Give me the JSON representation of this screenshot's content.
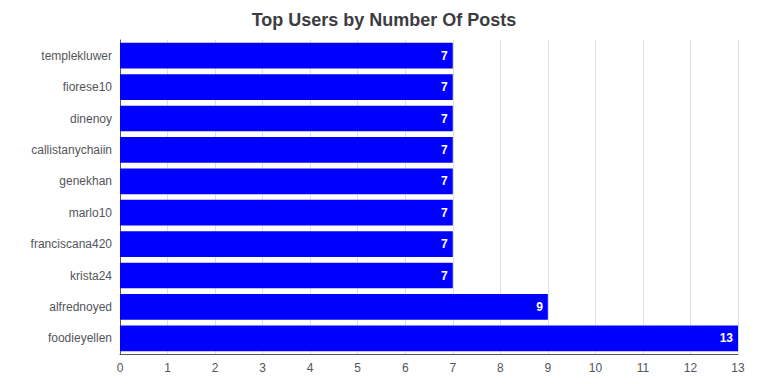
{
  "chart_data": {
    "type": "bar",
    "orientation": "horizontal",
    "title": "Top Users by Number Of Posts",
    "categories": [
      "templekluwer",
      "fiorese10",
      "dinenoy",
      "callistanychaiin",
      "genekhan",
      "marlo10",
      "franciscana420",
      "krista24",
      "alfrednoyed",
      "foodieyellen"
    ],
    "values": [
      7,
      7,
      7,
      7,
      7,
      7,
      7,
      7,
      9,
      13
    ],
    "color": "#0000ff",
    "xlim": [
      0,
      13
    ],
    "xticks": [
      0,
      1,
      2,
      3,
      4,
      5,
      6,
      7,
      8,
      9,
      10,
      11,
      12,
      13
    ],
    "grid": true,
    "data_labels": true
  }
}
